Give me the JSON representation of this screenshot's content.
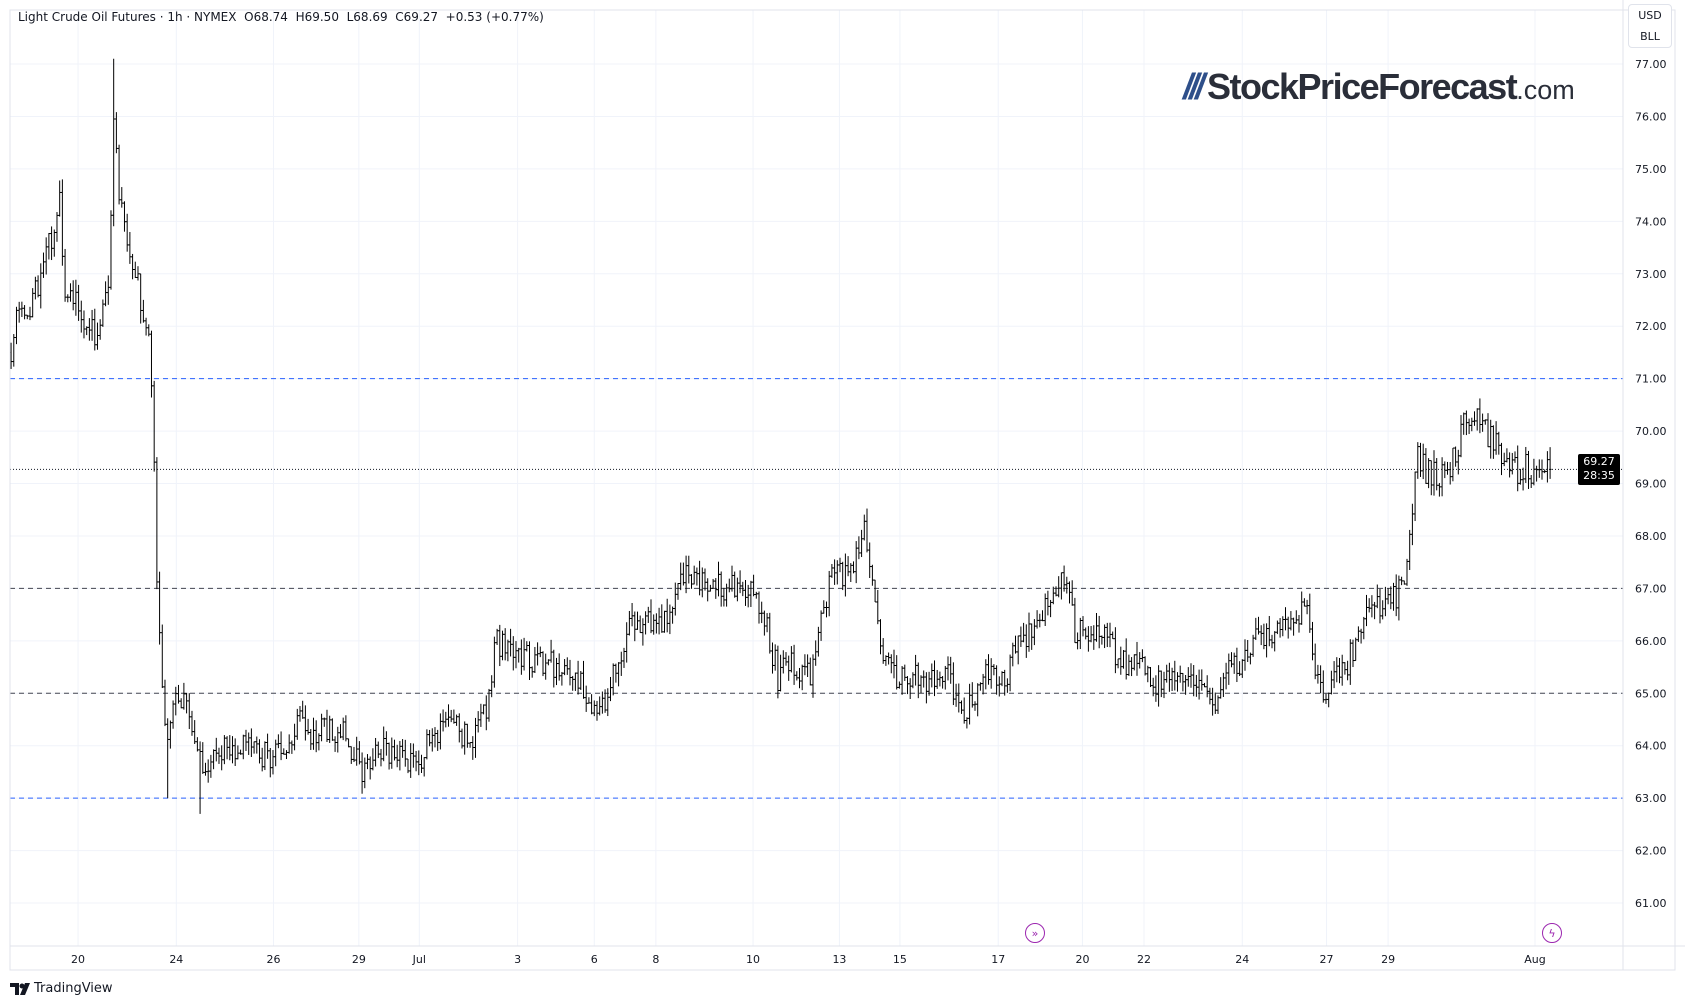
{
  "legend": {
    "symbol": "Light Crude Oil Futures · 1h · NYMEX",
    "open": "O68.74",
    "high": "H69.50",
    "low": "L68.69",
    "close": "C69.27",
    "change": "+0.53 (+0.77%)"
  },
  "currency": {
    "currency": "USD",
    "unit": "BLL"
  },
  "watermark": {
    "name": "StockPriceForecast",
    "suffix": ".com"
  },
  "last_price": {
    "price": "69.27",
    "countdown": "28:35"
  },
  "footer": {
    "brand": "TradingView"
  },
  "colors": {
    "bars": "#000000",
    "support_resistance_blue": "#2962ff",
    "dashed_dark": "#434651",
    "accent_icon": "#9c27b0"
  },
  "chart_data": {
    "type": "ohlc",
    "title": "Light Crude Oil Futures · 1h · NYMEX",
    "ylim": [
      60.2,
      77.35
    ],
    "y_ticks": [
      "77.00",
      "76.00",
      "75.00",
      "74.00",
      "73.00",
      "72.00",
      "71.00",
      "70.00",
      "69.00",
      "68.00",
      "67.00",
      "66.00",
      "65.00",
      "64.00",
      "63.00",
      "62.00",
      "61.00"
    ],
    "xlim": [
      -0.2,
      298.5
    ],
    "x_ticks": [
      {
        "label": "20",
        "bar": 12.4
      },
      {
        "label": "24",
        "bar": 30.6
      },
      {
        "label": "26",
        "bar": 48.6
      },
      {
        "label": "29",
        "bar": 64.4
      },
      {
        "label": "Jul",
        "bar": 75.6
      },
      {
        "label": "3",
        "bar": 93.8
      },
      {
        "label": "6",
        "bar": 108
      },
      {
        "label": "8",
        "bar": 119.4
      },
      {
        "label": "10",
        "bar": 137.4
      },
      {
        "label": "13",
        "bar": 153.4
      },
      {
        "label": "15",
        "bar": 164.6
      },
      {
        "label": "17",
        "bar": 182.8
      },
      {
        "label": "20",
        "bar": 198.4
      },
      {
        "label": "22",
        "bar": 209.8
      },
      {
        "label": "24",
        "bar": 228
      },
      {
        "label": "27",
        "bar": 243.6
      },
      {
        "label": "29",
        "bar": 255
      },
      {
        "label": "Aug",
        "bar": 282.2
      }
    ],
    "horizontal_lines": [
      {
        "price": 71.0,
        "style": "blue-dashed"
      },
      {
        "price": 67.0,
        "style": "dark-dashed"
      },
      {
        "price": 65.0,
        "style": "dark-dashed"
      },
      {
        "price": 63.0,
        "style": "blue-dashed"
      },
      {
        "price": 69.27,
        "style": "dotted-last"
      }
    ],
    "close_keypoints": [
      [
        0,
        71.5
      ],
      [
        1,
        72.3
      ],
      [
        3,
        72
      ],
      [
        5,
        72.8
      ],
      [
        7,
        73.5
      ],
      [
        9,
        74.3
      ],
      [
        10,
        72.5
      ],
      [
        12,
        72.5
      ],
      [
        14,
        72
      ],
      [
        16,
        71.8
      ],
      [
        18,
        72.6
      ],
      [
        19,
        76
      ],
      [
        20,
        74.5
      ],
      [
        22,
        73.5
      ],
      [
        24,
        72.5
      ],
      [
        25.6,
        72
      ],
      [
        26.4,
        70
      ],
      [
        27,
        67
      ],
      [
        28,
        65
      ],
      [
        29,
        64
      ],
      [
        30,
        65
      ],
      [
        32,
        64.8
      ],
      [
        34,
        64.2
      ],
      [
        36,
        63.5
      ],
      [
        38,
        63.8
      ],
      [
        42,
        64
      ],
      [
        46,
        63.8
      ],
      [
        50,
        63.8
      ],
      [
        53,
        64.5
      ],
      [
        56,
        64.2
      ],
      [
        60,
        64.3
      ],
      [
        62,
        64.2
      ],
      [
        65,
        63.5
      ],
      [
        68,
        64
      ],
      [
        70,
        63.8
      ],
      [
        74,
        63.7
      ],
      [
        76,
        63.8
      ],
      [
        78,
        64.2
      ],
      [
        82,
        64.3
      ],
      [
        86,
        64.2
      ],
      [
        88,
        64.8
      ],
      [
        90,
        66
      ],
      [
        93,
        65.7
      ],
      [
        96,
        65.7
      ],
      [
        98,
        65.6
      ],
      [
        101,
        65.5
      ],
      [
        104,
        65.5
      ],
      [
        107,
        65
      ],
      [
        108.4,
        64.5
      ],
      [
        111,
        65.2
      ],
      [
        113,
        65.8
      ],
      [
        115,
        66.5
      ],
      [
        118,
        66.3
      ],
      [
        121,
        66.4
      ],
      [
        124,
        67.2
      ],
      [
        127,
        67.2
      ],
      [
        130,
        67.1
      ],
      [
        133,
        67
      ],
      [
        136,
        67
      ],
      [
        139,
        66.7
      ],
      [
        141,
        65.8
      ],
      [
        142,
        65.3
      ],
      [
        145,
        65.6
      ],
      [
        148,
        65.3
      ],
      [
        150,
        66.5
      ],
      [
        152,
        67.2
      ],
      [
        156,
        67.3
      ],
      [
        158,
        68.1
      ],
      [
        159.6,
        67
      ],
      [
        161,
        65.7
      ],
      [
        164,
        65.3
      ],
      [
        167,
        65.3
      ],
      [
        170,
        65.3
      ],
      [
        173,
        65.5
      ],
      [
        176,
        64.7
      ],
      [
        178,
        64.8
      ],
      [
        180,
        65.5
      ],
      [
        184,
        65.3
      ],
      [
        187,
        66
      ],
      [
        190,
        66.3
      ],
      [
        193,
        66.8
      ],
      [
        195,
        67.2
      ],
      [
        197,
        66.2
      ],
      [
        200,
        66.2
      ],
      [
        203,
        66
      ],
      [
        206,
        65.6
      ],
      [
        209,
        65.5
      ],
      [
        212,
        65.2
      ],
      [
        215,
        65.2
      ],
      [
        218,
        65.3
      ],
      [
        221,
        65
      ],
      [
        223,
        64.9
      ],
      [
        226,
        65.5
      ],
      [
        229,
        65.7
      ],
      [
        231,
        66.1
      ],
      [
        234,
        66.1
      ],
      [
        237,
        66.4
      ],
      [
        240,
        66.5
      ],
      [
        242,
        65.2
      ],
      [
        244,
        65.1
      ],
      [
        247,
        65.5
      ],
      [
        249,
        66
      ],
      [
        251,
        66.8
      ],
      [
        254,
        66.7
      ],
      [
        257,
        66.9
      ],
      [
        259,
        67.8
      ],
      [
        260.4,
        69.5
      ],
      [
        262,
        69.2
      ],
      [
        266,
        69.1
      ],
      [
        268,
        69.8
      ],
      [
        269.6,
        70.4
      ],
      [
        272,
        70.1
      ],
      [
        275,
        69.7
      ],
      [
        277,
        69.2
      ],
      [
        280,
        69.3
      ],
      [
        283,
        69.2
      ],
      [
        285,
        69.27
      ]
    ],
    "extremes": [
      {
        "bar": 19,
        "high": 77.1
      },
      {
        "bar": 29,
        "low": 63.0
      },
      {
        "bar": 35,
        "low": 62.7
      }
    ]
  }
}
